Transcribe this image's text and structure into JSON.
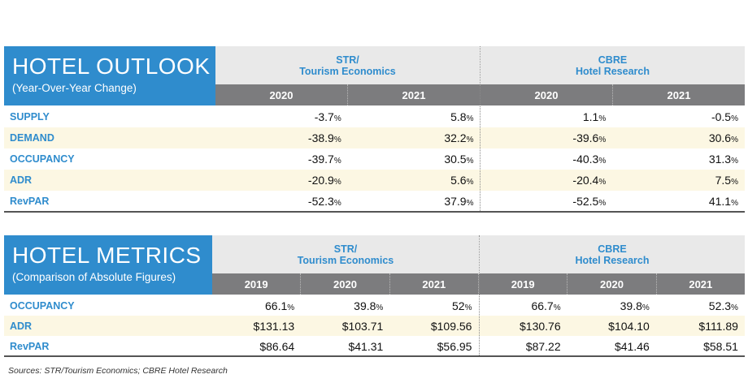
{
  "outlook": {
    "title": "HOTEL OUTLOOK",
    "subtitle": "(Year-Over-Year Change)",
    "sources": [
      {
        "line1": "STR/",
        "line2": "Tourism Economics"
      },
      {
        "line1": "CBRE",
        "line2": "Hotel Research"
      }
    ],
    "years": [
      "2020",
      "2021",
      "2020",
      "2021"
    ],
    "rows": [
      {
        "label": "SUPPLY",
        "values": [
          {
            "n": "-3.7",
            "u": "%"
          },
          {
            "n": "5.8",
            "u": "%"
          },
          {
            "n": "1.1",
            "u": "%"
          },
          {
            "n": "-0.5",
            "u": "%"
          }
        ]
      },
      {
        "label": "DEMAND",
        "values": [
          {
            "n": "-38.9",
            "u": "%"
          },
          {
            "n": "32.2",
            "u": "%"
          },
          {
            "n": "-39.6",
            "u": "%"
          },
          {
            "n": "30.6",
            "u": "%"
          }
        ]
      },
      {
        "label": "OCCUPANCY",
        "values": [
          {
            "n": "-39.7",
            "u": "%"
          },
          {
            "n": "30.5",
            "u": "%"
          },
          {
            "n": "-40.3",
            "u": "%"
          },
          {
            "n": "31.3",
            "u": "%"
          }
        ]
      },
      {
        "label": "ADR",
        "values": [
          {
            "n": "-20.9",
            "u": "%"
          },
          {
            "n": "5.6",
            "u": "%"
          },
          {
            "n": "-20.4",
            "u": "%"
          },
          {
            "n": "7.5",
            "u": "%"
          }
        ]
      },
      {
        "label": "RevPAR",
        "values": [
          {
            "n": "-52.3",
            "u": "%"
          },
          {
            "n": "37.9",
            "u": "%"
          },
          {
            "n": "-52.5",
            "u": "%"
          },
          {
            "n": "41.1",
            "u": "%"
          }
        ]
      }
    ]
  },
  "metrics": {
    "title": "HOTEL METRICS",
    "subtitle": "(Comparison of Absolute Figures)",
    "sources": [
      {
        "line1": "STR/",
        "line2": "Tourism Economics"
      },
      {
        "line1": "CBRE",
        "line2": "Hotel Research"
      }
    ],
    "years": [
      "2019",
      "2020",
      "2021",
      "2019",
      "2020",
      "2021"
    ],
    "rows": [
      {
        "label": "OCCUPANCY",
        "values": [
          {
            "n": "66.1",
            "u": "%"
          },
          {
            "n": "39.8",
            "u": "%"
          },
          {
            "n": "52",
            "u": "%"
          },
          {
            "n": "66.7",
            "u": "%"
          },
          {
            "n": "39.8",
            "u": "%"
          },
          {
            "n": "52.3",
            "u": "%"
          }
        ]
      },
      {
        "label": "ADR",
        "values": [
          {
            "n": "$131.13",
            "u": ""
          },
          {
            "n": "$103.71",
            "u": ""
          },
          {
            "n": "$109.56",
            "u": ""
          },
          {
            "n": "$130.76",
            "u": ""
          },
          {
            "n": "$104.10",
            "u": ""
          },
          {
            "n": "$111.89",
            "u": ""
          }
        ]
      },
      {
        "label": "RevPAR",
        "values": [
          {
            "n": "$86.64",
            "u": ""
          },
          {
            "n": "$41.31",
            "u": ""
          },
          {
            "n": "$56.95",
            "u": ""
          },
          {
            "n": "$87.22",
            "u": ""
          },
          {
            "n": "$41.46",
            "u": ""
          },
          {
            "n": "$58.51",
            "u": ""
          }
        ]
      }
    ]
  },
  "footnote": "Sources: STR/Tourism Economics; CBRE Hotel Research",
  "chart_data": [
    {
      "type": "table",
      "title": "HOTEL OUTLOOK",
      "subtitle": "(Year-Over-Year Change)",
      "column_groups": [
        "STR/ Tourism Economics",
        "CBRE Hotel Research"
      ],
      "columns": [
        "2020",
        "2021",
        "2020",
        "2021"
      ],
      "rows": [
        "SUPPLY",
        "DEMAND",
        "OCCUPANCY",
        "ADR",
        "RevPAR"
      ],
      "unit": "%",
      "values": [
        [
          -3.7,
          5.8,
          1.1,
          -0.5
        ],
        [
          -38.9,
          32.2,
          -39.6,
          30.6
        ],
        [
          -39.7,
          30.5,
          -40.3,
          31.3
        ],
        [
          -20.9,
          5.6,
          -20.4,
          7.5
        ],
        [
          -52.3,
          37.9,
          -52.5,
          41.1
        ]
      ]
    },
    {
      "type": "table",
      "title": "HOTEL METRICS",
      "subtitle": "(Comparison of Absolute Figures)",
      "column_groups": [
        "STR/ Tourism Economics",
        "CBRE Hotel Research"
      ],
      "columns": [
        "2019",
        "2020",
        "2021",
        "2019",
        "2020",
        "2021"
      ],
      "rows": [
        "OCCUPANCY",
        "ADR",
        "RevPAR"
      ],
      "values": [
        [
          "66.1%",
          "39.8%",
          "52%",
          "66.7%",
          "39.8%",
          "52.3%"
        ],
        [
          "$131.13",
          "$103.71",
          "$109.56",
          "$130.76",
          "$104.10",
          "$111.89"
        ],
        [
          "$86.64",
          "$41.31",
          "$56.95",
          "$87.22",
          "$41.46",
          "$58.51"
        ]
      ]
    }
  ]
}
